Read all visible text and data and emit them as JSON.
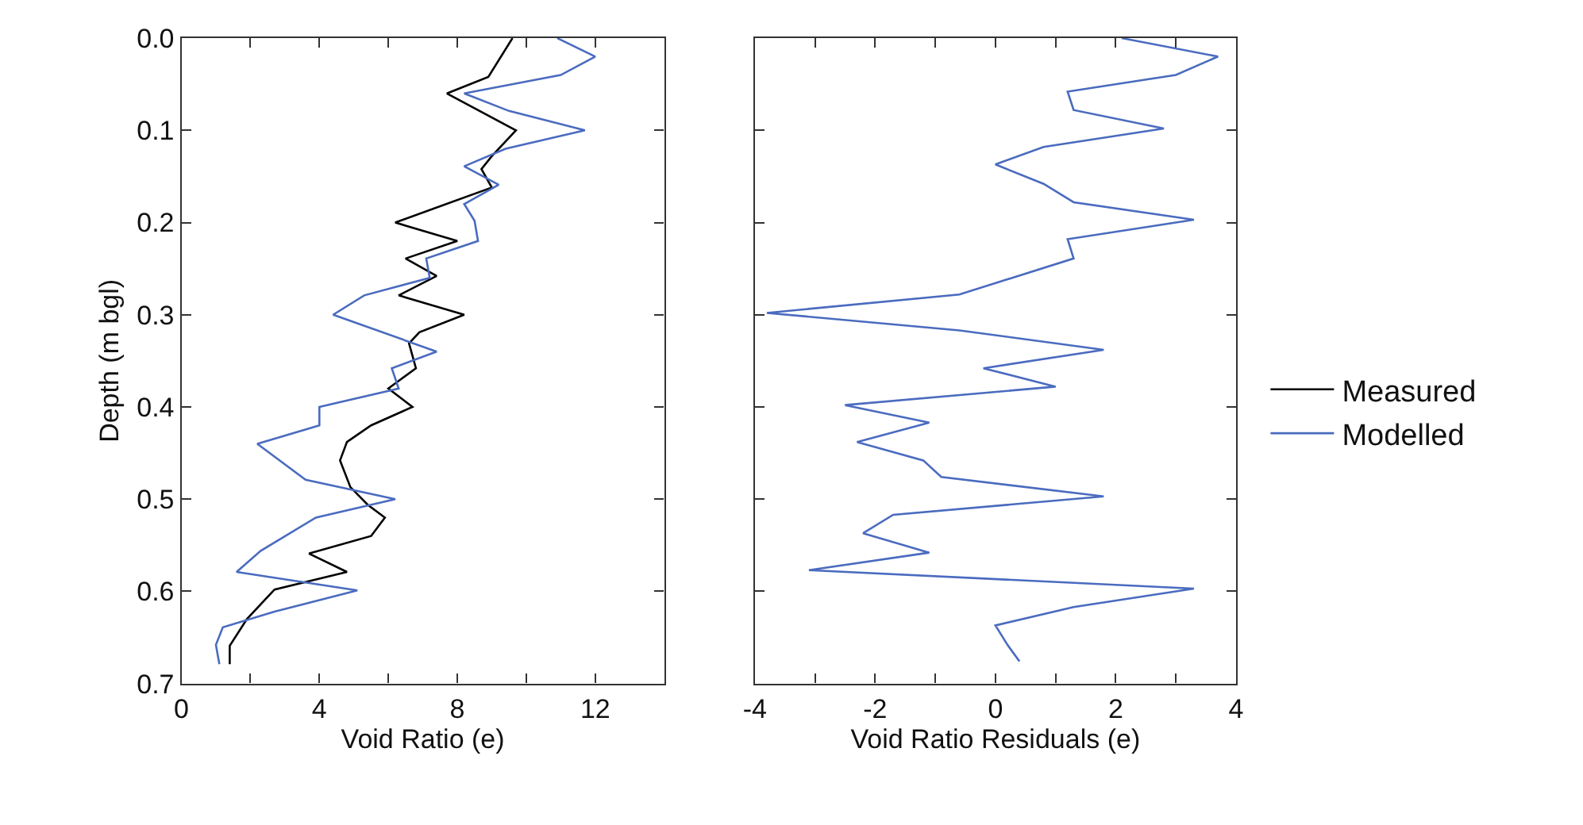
{
  "chart_data": [
    {
      "type": "line",
      "orientation": "horizontal",
      "xlabel": "Void Ratio (e)",
      "ylabel": "Depth (m bgl)",
      "xlim": [
        0,
        14
      ],
      "xticks": [
        0,
        {
          "value": 2,
          "label": null
        },
        4,
        {
          "value": 6,
          "label": null
        },
        8,
        {
          "value": 10,
          "label": null
        },
        12
      ],
      "ylim": [
        0.7,
        0
      ],
      "yticks": [
        {
          "value": 0,
          "label": "0.0"
        },
        0.1,
        0.2,
        0.3,
        0.4,
        0.5,
        0.6,
        0.7
      ],
      "legend": "right",
      "line_style": "solid",
      "marker": "none",
      "series": [
        {
          "name": "Measured",
          "color": "#000000",
          "x": [
            0.0,
            0.042,
            0.06,
            0.1,
            0.128,
            0.142,
            0.162,
            0.2,
            0.22,
            0.239,
            0.258,
            0.279,
            0.3,
            0.319,
            0.331,
            0.358,
            0.38,
            0.4,
            0.42,
            0.438,
            0.458,
            0.487,
            0.506,
            0.52,
            0.54,
            0.559,
            0.579,
            0.598,
            0.63,
            0.659,
            0.679
          ],
          "values": [
            9.6,
            8.9,
            7.7,
            9.7,
            9.0,
            8.7,
            9.0,
            6.2,
            8.0,
            6.5,
            7.4,
            6.3,
            8.2,
            6.9,
            6.6,
            6.8,
            6.0,
            6.7,
            5.5,
            4.8,
            4.6,
            4.9,
            5.4,
            5.9,
            5.5,
            3.7,
            4.8,
            2.7,
            1.9,
            1.4,
            1.4
          ]
        },
        {
          "name": "Modelled",
          "color": "#4a6bbf",
          "x": [
            0.0,
            0.02,
            0.04,
            0.06,
            0.079,
            0.1,
            0.12,
            0.139,
            0.159,
            0.18,
            0.198,
            0.22,
            0.239,
            0.26,
            0.279,
            0.3,
            0.34,
            0.358,
            0.38,
            0.4,
            0.42,
            0.44,
            0.479,
            0.5,
            0.52,
            0.556,
            0.579,
            0.599,
            0.622,
            0.639,
            0.658,
            0.679
          ],
          "values": [
            10.9,
            12.0,
            11.0,
            8.2,
            9.5,
            11.7,
            9.4,
            8.2,
            9.2,
            8.2,
            8.5,
            8.6,
            7.1,
            7.2,
            5.3,
            4.4,
            7.4,
            6.1,
            6.3,
            4.0,
            4.0,
            2.2,
            3.6,
            6.2,
            3.9,
            2.3,
            1.6,
            5.1,
            2.7,
            1.2,
            1.0,
            1.1
          ]
        }
      ]
    },
    {
      "type": "line",
      "orientation": "horizontal",
      "xlabel": "Void Ratio Residuals (e)",
      "xlim": [
        -4,
        4
      ],
      "xticks": [
        -4,
        {
          "value": -3,
          "label": null
        },
        -2,
        {
          "value": -1,
          "label": null
        },
        0,
        {
          "value": 1,
          "label": null
        },
        2,
        {
          "value": 3,
          "label": null
        },
        4
      ],
      "ylim": [
        0.7,
        0
      ],
      "yticks": [
        {
          "value": 0,
          "label": null
        },
        {
          "value": 0.1,
          "label": null
        },
        {
          "value": 0.2,
          "label": null
        },
        {
          "value": 0.3,
          "label": null
        },
        {
          "value": 0.4,
          "label": null
        },
        {
          "value": 0.5,
          "label": null
        },
        {
          "value": 0.6,
          "label": null
        },
        {
          "value": 0.7,
          "label": null
        }
      ],
      "tick_labels": "x",
      "line_style": "solid",
      "marker": "none",
      "series": [
        {
          "color": "#4a6bbf",
          "x": [
            0.0,
            0.02,
            0.04,
            0.058,
            0.078,
            0.098,
            0.118,
            0.137,
            0.158,
            0.178,
            0.197,
            0.218,
            0.239,
            0.278,
            0.298,
            0.317,
            0.338,
            0.358,
            0.378,
            0.398,
            0.417,
            0.438,
            0.458,
            0.476,
            0.497,
            0.517,
            0.537,
            0.558,
            0.577,
            0.597,
            0.617,
            0.637,
            0.658,
            0.676
          ],
          "values": [
            2.1,
            3.7,
            3.0,
            1.2,
            1.3,
            2.8,
            0.8,
            0.0,
            0.8,
            1.3,
            3.3,
            1.2,
            1.3,
            -0.6,
            -3.8,
            -0.6,
            1.8,
            -0.2,
            1.0,
            -2.5,
            -1.1,
            -2.3,
            -1.2,
            -0.9,
            1.8,
            -1.7,
            -2.2,
            -1.1,
            -3.1,
            3.3,
            1.3,
            0.0,
            0.2,
            0.4
          ]
        }
      ]
    }
  ]
}
